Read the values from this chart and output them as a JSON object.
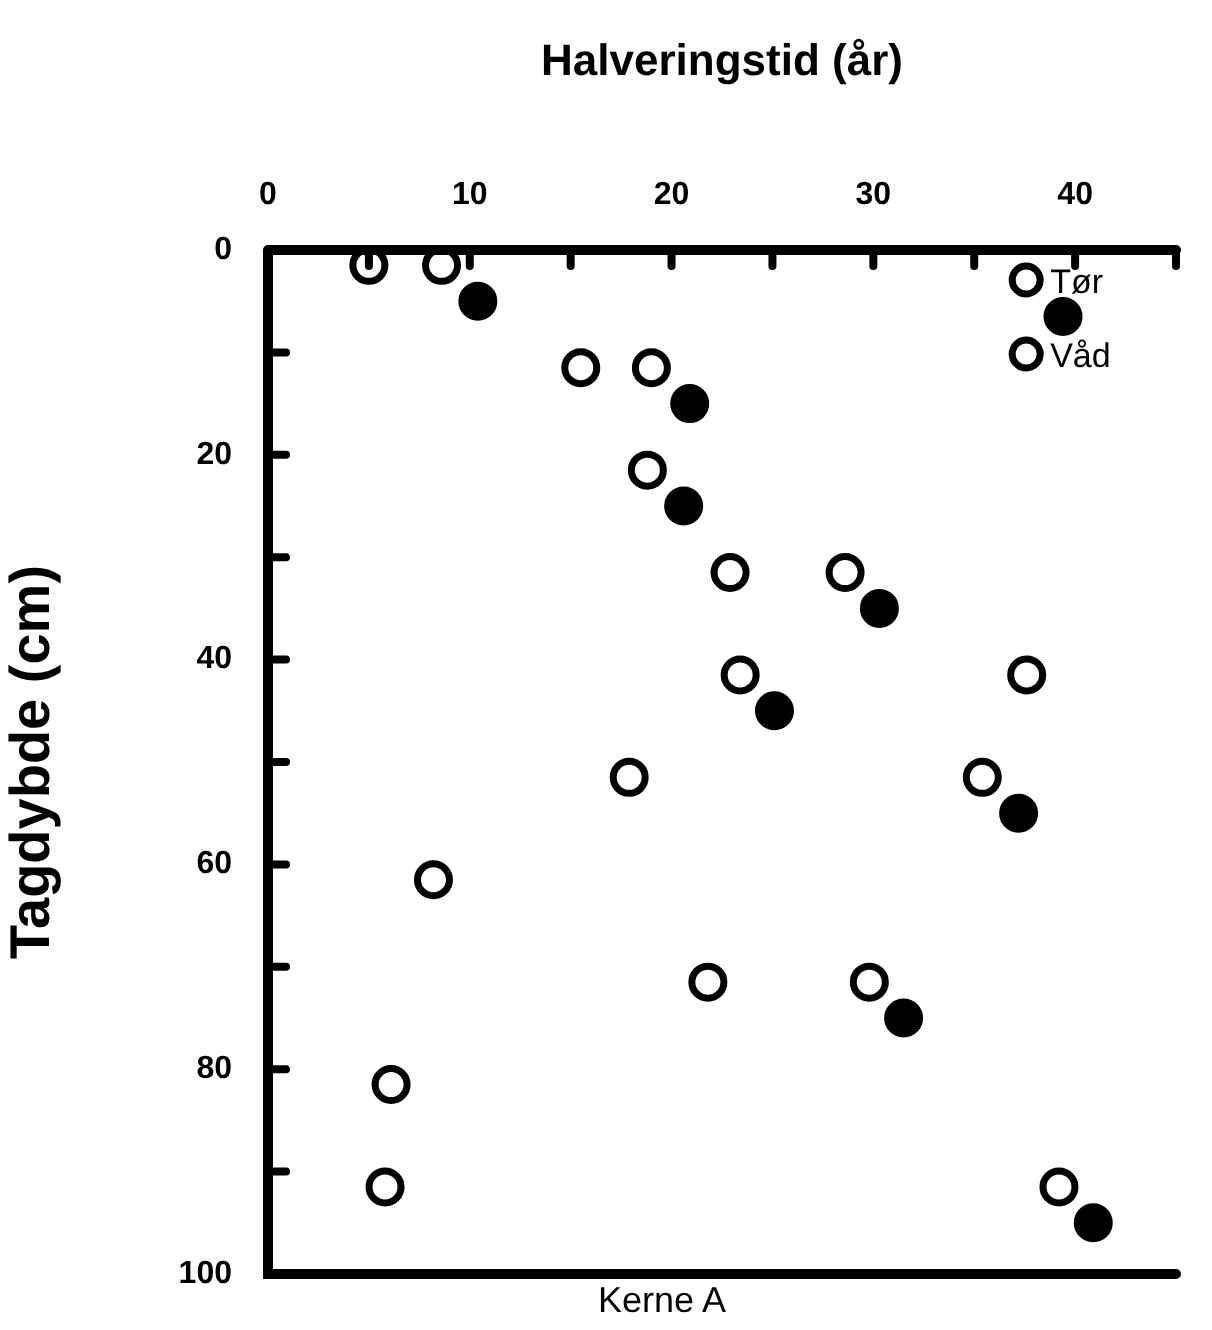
{
  "chart_data": {
    "type": "scatter",
    "xlabel": "Halveringstid (år)",
    "ylabel": "Tagdybde (cm)",
    "annotations": [
      "Kerne A"
    ],
    "xlim": [
      0,
      45
    ],
    "xticks": [
      0,
      {
        "value": 5,
        "label": null
      },
      10,
      {
        "value": 15,
        "label": null
      },
      20,
      {
        "value": 25,
        "label": null
      },
      30,
      {
        "value": 35,
        "label": null
      },
      40,
      {
        "value": 45,
        "label": null
      }
    ],
    "ylim": [
      100,
      0
    ],
    "yticks": [
      0,
      {
        "value": 10,
        "label": null
      },
      20,
      {
        "value": 30,
        "label": null
      },
      40,
      {
        "value": 50,
        "label": null
      },
      60,
      {
        "value": 70,
        "label": null
      },
      80,
      {
        "value": 90,
        "label": null
      },
      100
    ],
    "legend": "top right",
    "marker": "circle",
    "grid": false,
    "series": [
      {
        "name": "Tør",
        "color": "#ffffff",
        "x": [
          5.0,
          15.5,
          22.9,
          37.6,
          17.9,
          8.2,
          21.8,
          6.1,
          5.8
        ],
        "values": [
          1.5,
          11.5,
          31.5,
          41.5,
          51.5,
          61.5,
          71.5,
          81.5,
          91.5
        ]
      },
      {
        "color": "#000000",
        "x": [
          10.4,
          39.4,
          20.9,
          20.6,
          30.3,
          25.1,
          37.2,
          31.5,
          40.9
        ],
        "values": [
          5,
          6.5,
          15,
          25,
          35,
          45,
          55,
          75,
          95
        ]
      },
      {
        "name": "Våd",
        "color": "#ffffff",
        "x": [
          8.6,
          19.0,
          18.8,
          28.6,
          23.4,
          35.4,
          29.8,
          39.2
        ],
        "values": [
          1.5,
          11.5,
          21.5,
          31.5,
          41.5,
          51.5,
          71.5,
          91.5
        ]
      }
    ]
  }
}
